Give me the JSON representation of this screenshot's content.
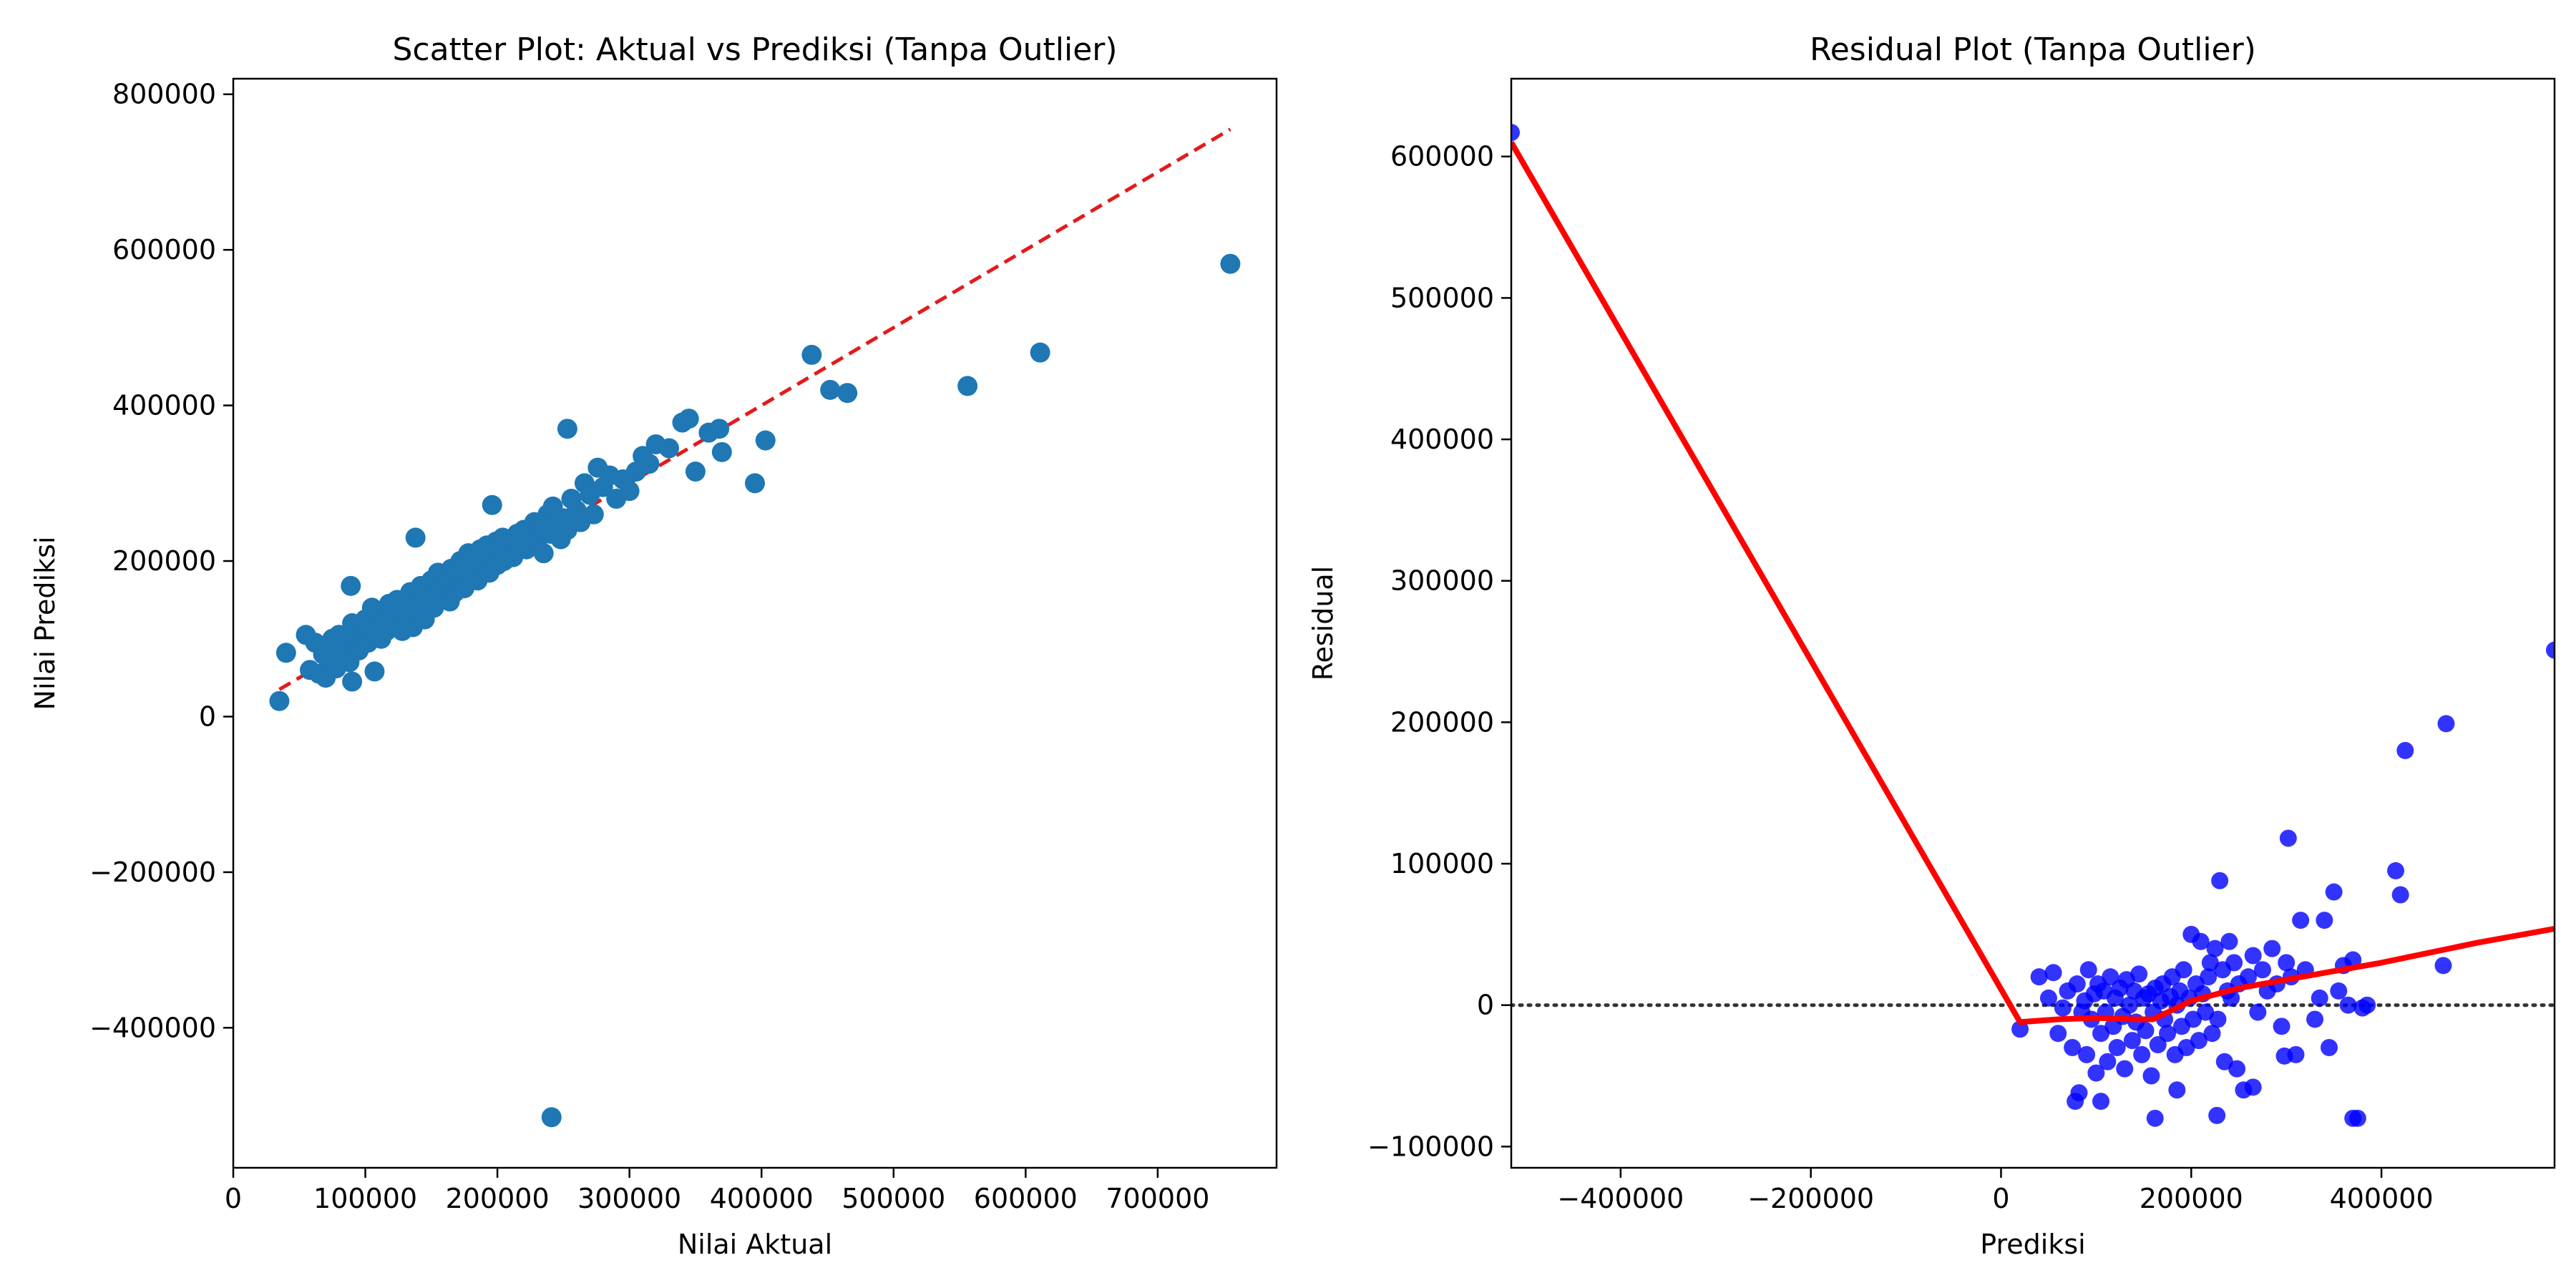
{
  "chart_data": [
    {
      "type": "scatter",
      "title": "Scatter Plot: Aktual vs Prediksi (Tanpa Outlier)",
      "xlabel": "Nilai Aktual",
      "ylabel": "Nilai Prediksi",
      "xlim": [
        0,
        790000
      ],
      "ylim": [
        -580000,
        820000
      ],
      "xticks": [
        0,
        100000,
        200000,
        300000,
        400000,
        500000,
        600000,
        700000
      ],
      "xtick_labels": [
        "0",
        "100000",
        "200000",
        "300000",
        "400000",
        "500000",
        "600000",
        "700000"
      ],
      "yticks": [
        -400000,
        -200000,
        0,
        200000,
        400000,
        600000,
        800000
      ],
      "ytick_labels": [
        "−400000",
        "−200000",
        "0",
        "200000",
        "400000",
        "600000",
        "800000"
      ],
      "grid": false,
      "colors": {
        "points": "#1f77b4",
        "reference_line": "#e31a1c"
      },
      "reference_line": {
        "style": "dashed",
        "x": [
          34900,
          755000
        ],
        "y": [
          34900,
          755000
        ]
      },
      "series": [
        {
          "x": [
            34900,
            40000,
            55000,
            58000,
            62000,
            65000,
            68000,
            70000,
            72000,
            75000,
            78000,
            80000,
            82000,
            85000,
            88000,
            90000,
            92000,
            95000,
            98000,
            100000,
            102000,
            105000,
            106000,
            108000,
            110000,
            112000,
            115000,
            116000,
            118000,
            120000,
            122000,
            124000,
            125000,
            127000,
            128000,
            130000,
            132000,
            134000,
            135000,
            136000,
            138000,
            140000,
            140000,
            142000,
            143000,
            145000,
            146000,
            148000,
            150000,
            152000,
            153000,
            155000,
            156000,
            158000,
            160000,
            162000,
            164000,
            165000,
            167000,
            168000,
            170000,
            172000,
            174000,
            175000,
            177000,
            178000,
            180000,
            182000,
            184000,
            185000,
            187000,
            189000,
            190000,
            192000,
            194000,
            195000,
            197000,
            199000,
            200000,
            202000,
            204000,
            205000,
            207000,
            210000,
            212000,
            215000,
            218000,
            220000,
            222000,
            225000,
            228000,
            230000,
            232000,
            235000,
            238000,
            240000,
            242000,
            245000,
            248000,
            250000,
            253000,
            256000,
            260000,
            263000,
            266000,
            270000,
            273000,
            276000,
            280000,
            285000,
            290000,
            295000,
            300000,
            305000,
            310000,
            315000,
            320000,
            330000,
            340000,
            345000,
            350000,
            360000,
            368000,
            370000,
            395000,
            403000,
            438000,
            452000,
            465000,
            556000,
            611000,
            755000,
            241000,
            253000,
            138000,
            90000,
            107000,
            196000,
            89000
          ],
          "values": [
            20000,
            82000,
            105000,
            60000,
            95000,
            55000,
            80000,
            50000,
            75000,
            100000,
            62000,
            105000,
            85000,
            95000,
            70000,
            120000,
            100000,
            85000,
            110000,
            125000,
            95000,
            140000,
            105000,
            118000,
            130000,
            100000,
            125000,
            110000,
            145000,
            135000,
            115000,
            150000,
            128000,
            140000,
            110000,
            145000,
            125000,
            160000,
            138000,
            115000,
            150000,
            155000,
            130000,
            168000,
            145000,
            125000,
            160000,
            150000,
            175000,
            140000,
            162000,
            185000,
            150000,
            170000,
            160000,
            180000,
            148000,
            190000,
            172000,
            160000,
            185000,
            200000,
            175000,
            165000,
            195000,
            210000,
            180000,
            205000,
            190000,
            175000,
            215000,
            195000,
            200000,
            220000,
            185000,
            205000,
            215000,
            225000,
            195000,
            210000,
            230000,
            200000,
            218000,
            225000,
            205000,
            235000,
            220000,
            240000,
            215000,
            230000,
            250000,
            225000,
            240000,
            210000,
            260000,
            235000,
            270000,
            245000,
            228000,
            255000,
            240000,
            280000,
            265000,
            250000,
            300000,
            285000,
            260000,
            320000,
            295000,
            310000,
            280000,
            305000,
            290000,
            315000,
            335000,
            325000,
            350000,
            345000,
            378000,
            383000,
            315000,
            365000,
            370000,
            340000,
            300000,
            355000,
            465000,
            420000,
            416000,
            425000,
            468000,
            582000,
            -515000,
            370000,
            230000,
            45000,
            58000,
            272000,
            168000
          ]
        }
      ]
    },
    {
      "type": "scatter",
      "title": "Residual Plot (Tanpa Outlier)",
      "xlabel": "Prediksi",
      "ylabel": "Residual",
      "xlim": [
        -515000,
        582000
      ],
      "ylim": [
        -115000,
        655000
      ],
      "xticks": [
        -400000,
        -200000,
        0,
        200000,
        400000
      ],
      "xtick_labels": [
        "−400000",
        "−200000",
        "0",
        "200000",
        "400000"
      ],
      "yticks": [
        -100000,
        0,
        100000,
        200000,
        300000,
        400000,
        500000,
        600000
      ],
      "ytick_labels": [
        "−100000",
        "0",
        "100000",
        "200000",
        "300000",
        "400000",
        "500000",
        "600000"
      ],
      "grid": false,
      "colors": {
        "points": "#0000ff",
        "lowess_line": "#ff0000",
        "zero_line": "#333333"
      },
      "zero_line": {
        "y": 0,
        "style": "dotted"
      },
      "series": [
        {
          "x": [
            -515000,
            20000,
            40000,
            50000,
            55000,
            60000,
            65000,
            70000,
            75000,
            80000,
            82000,
            85000,
            88000,
            90000,
            92000,
            95000,
            98000,
            100000,
            102000,
            105000,
            108000,
            110000,
            112000,
            115000,
            118000,
            120000,
            122000,
            125000,
            128000,
            130000,
            132000,
            135000,
            138000,
            140000,
            142000,
            145000,
            148000,
            150000,
            152000,
            155000,
            158000,
            160000,
            162000,
            165000,
            168000,
            170000,
            172000,
            175000,
            178000,
            180000,
            183000,
            185000,
            188000,
            190000,
            192000,
            195000,
            198000,
            200000,
            202000,
            205000,
            208000,
            210000,
            212000,
            215000,
            218000,
            220000,
            222000,
            225000,
            228000,
            230000,
            233000,
            235000,
            238000,
            240000,
            242000,
            245000,
            248000,
            250000,
            255000,
            260000,
            265000,
            270000,
            275000,
            280000,
            285000,
            290000,
            295000,
            300000,
            302000,
            305000,
            310000,
            315000,
            320000,
            330000,
            335000,
            340000,
            345000,
            350000,
            355000,
            360000,
            365000,
            370000,
            375000,
            380000,
            385000,
            415000,
            420000,
            425000,
            465000,
            468000,
            582000,
            78000,
            105000,
            162000,
            185000,
            227000,
            265000,
            370000,
            298000
          ],
          "values": [
            617000,
            -17000,
            20000,
            5000,
            23000,
            -20000,
            -2000,
            10000,
            -30000,
            15000,
            -62000,
            -5000,
            3000,
            -35000,
            25000,
            -10000,
            8000,
            -48000,
            15000,
            -20000,
            10000,
            -5000,
            -40000,
            20000,
            -15000,
            5000,
            -30000,
            12000,
            -8000,
            -45000,
            18000,
            0,
            -25000,
            10000,
            -12000,
            22000,
            -35000,
            5000,
            -18000,
            8000,
            -50000,
            -5000,
            12000,
            -28000,
            3000,
            15000,
            -10000,
            -20000,
            6000,
            20000,
            -35000,
            0,
            10000,
            -15000,
            25000,
            -30000,
            5000,
            50000,
            -10000,
            15000,
            -25000,
            45000,
            8000,
            -5000,
            20000,
            30000,
            -20000,
            40000,
            -10000,
            88000,
            25000,
            -40000,
            10000,
            45000,
            5000,
            30000,
            -45000,
            15000,
            -60000,
            20000,
            35000,
            -5000,
            25000,
            10000,
            40000,
            15000,
            -15000,
            30000,
            118000,
            20000,
            -35000,
            60000,
            25000,
            -10000,
            5000,
            60000,
            -30000,
            80000,
            10000,
            28000,
            0,
            32000,
            -80000,
            -2000,
            0,
            95000,
            78000,
            180000,
            28000,
            199000,
            251000,
            -68000,
            -68000,
            -80000,
            -60000,
            -78000,
            -58000,
            -80000,
            -36000
          ]
        }
      ],
      "lowess_line": {
        "x": [
          -515000,
          20000,
          60000,
          100000,
          140000,
          160000,
          200000,
          250000,
          300000,
          350000,
          400000,
          450000,
          500000,
          582000
        ],
        "y": [
          610000,
          -12000,
          -10000,
          -9000,
          -10000,
          -10000,
          3000,
          12000,
          18000,
          24000,
          30000,
          37000,
          44000,
          54000
        ]
      }
    }
  ]
}
